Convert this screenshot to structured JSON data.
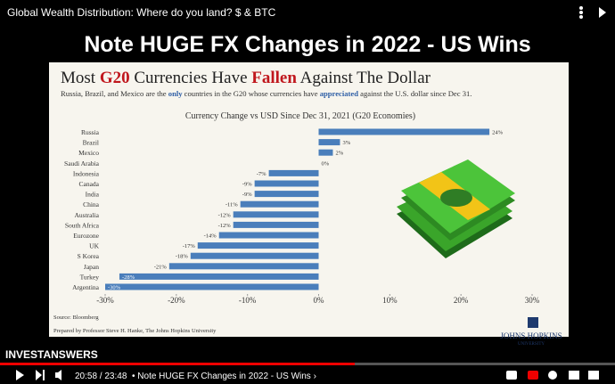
{
  "video_title": "Global Wealth Distribution: Where do you land? $ & BTC",
  "overlay_heading": "Note HUGE FX Changes in 2022 - US Wins",
  "chart_data": {
    "type": "bar",
    "orientation": "horizontal",
    "title": "Most G20 Currencies Have Fallen Against The Dollar",
    "title_highlights": [
      "G20",
      "Fallen"
    ],
    "subtitle": "Russia, Brazil, and Mexico are the only countries in the G20 whose currencies have appreciated against the U.S. dollar since Dec 31.",
    "subtitle_highlights": [
      "only",
      "appreciated"
    ],
    "chart_title": "Currency Change vs USD Since Dec 31, 2021 (G20 Economies)",
    "categories": [
      "Russia",
      "Brazil",
      "Mexico",
      "Saudi Arabia",
      "Indonesia",
      "Canada",
      "India",
      "China",
      "Australia",
      "South Africa",
      "Eurozone",
      "UK",
      "S Korea",
      "Japan",
      "Turkey",
      "Argentina"
    ],
    "values": [
      24,
      3,
      2,
      0,
      -7,
      -9,
      -9,
      -11,
      -12,
      -12,
      -14,
      -17,
      -18,
      -21,
      -28,
      -30
    ],
    "value_labels": [
      "24%",
      "3%",
      "2%",
      "0%",
      "-7%",
      "-9%",
      "-9%",
      "-11%",
      "-12%",
      "-12%",
      "-14%",
      "-17%",
      "-18%",
      "-21%",
      "-28%",
      "-30%"
    ],
    "color": "#4a7ebb",
    "xlim": [
      -30,
      30
    ],
    "xticks": [
      {
        "value": -30,
        "label": "-30%"
      },
      {
        "value": -20,
        "label": "-20%"
      },
      {
        "value": -10,
        "label": "-10%"
      },
      {
        "value": 0,
        "label": "0%"
      },
      {
        "value": 10,
        "label": "10%"
      },
      {
        "value": 20,
        "label": "20%"
      },
      {
        "value": 30,
        "label": "30%"
      }
    ],
    "source": "Source: Bloomberg",
    "credit": "Prepared by Professor Steve H. Hanke, The Johns Hopkins University",
    "logo_name": "JOHNS HOPKINS",
    "logo_sub": "UNIVERSITY"
  },
  "player": {
    "watermark": "INVESTANSWERS",
    "time": "20:58 / 23:48",
    "chapter": "• Note HUGE FX Changes in 2022 - US Wins ›"
  }
}
